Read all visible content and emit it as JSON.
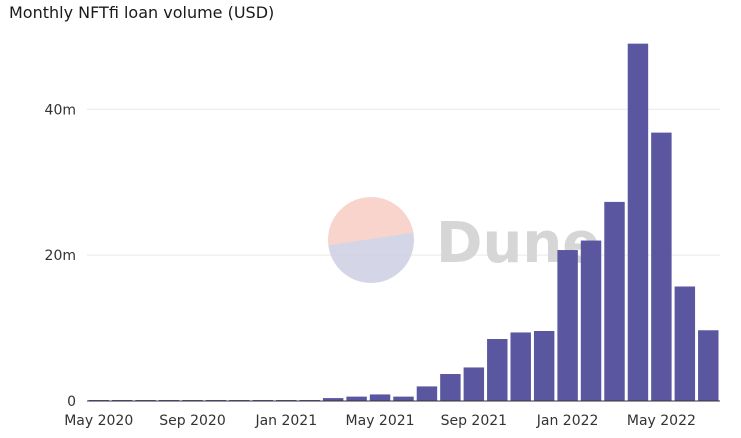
{
  "title": "Monthly NFTfi loan volume (USD)",
  "watermark": {
    "text": "Dune",
    "color_top": "#f7cfc7",
    "color_bottom": "#cfd1e4"
  },
  "bar_color": "#5a56a0",
  "chart_data": {
    "type": "bar",
    "title": "Monthly NFTfi loan volume (USD)",
    "xlabel": "",
    "ylabel": "",
    "categories": [
      "2020-05",
      "2020-06",
      "2020-07",
      "2020-08",
      "2020-09",
      "2020-10",
      "2020-11",
      "2020-12",
      "2021-01",
      "2021-02",
      "2021-03",
      "2021-04",
      "2021-05",
      "2021-06",
      "2021-07",
      "2021-08",
      "2021-09",
      "2021-10",
      "2021-11",
      "2021-12",
      "2022-01",
      "2022-02",
      "2022-03",
      "2022-04",
      "2022-05",
      "2022-06",
      "2022-07"
    ],
    "values": [
      0.05,
      0.05,
      0.05,
      0.05,
      0.05,
      0.05,
      0.05,
      0.05,
      0.05,
      0.1,
      0.4,
      0.6,
      0.9,
      0.6,
      2.0,
      3.7,
      4.6,
      8.5,
      9.4,
      9.6,
      20.7,
      22.0,
      27.3,
      49.0,
      36.8,
      15.7,
      9.7
    ],
    "value_unit": "m",
    "ylim": [
      0,
      49.5
    ],
    "yticks": [
      0,
      20,
      40
    ],
    "ytick_labels": [
      "0",
      "20m",
      "40m"
    ],
    "xtick_categories": [
      "2020-05",
      "2020-09",
      "2021-01",
      "2021-05",
      "2021-09",
      "2022-01",
      "2022-05"
    ],
    "xtick_labels": [
      "May 2020",
      "Sep 2020",
      "Jan 2021",
      "May 2021",
      "Sep 2021",
      "Jan 2022",
      "May 2022"
    ],
    "grid": true,
    "legend": "none"
  }
}
